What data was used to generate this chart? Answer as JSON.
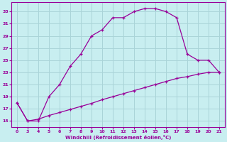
{
  "xlabel": "Windchill (Refroidissement éolien,°C)",
  "background_color": "#c8eef0",
  "grid_color": "#aad4d8",
  "line_color": "#990099",
  "ylim": [
    14.0,
    34.5
  ],
  "yticks": [
    15,
    17,
    19,
    21,
    23,
    25,
    27,
    29,
    31,
    33
  ],
  "xtick_labels": [
    "0",
    "3",
    "4",
    "5",
    "6",
    "7",
    "8",
    "9",
    "10",
    "11",
    "12",
    "13",
    "14",
    "15",
    "16",
    "17",
    "18",
    "19",
    "20",
    "21"
  ],
  "line1_pos": [
    0,
    1,
    2,
    3,
    4,
    5,
    6,
    7,
    8,
    9,
    10,
    11,
    12,
    13,
    14,
    15,
    16,
    17,
    18,
    19
  ],
  "line1_y": [
    18,
    15,
    15,
    19,
    21,
    24,
    26,
    29,
    30,
    32,
    32,
    33,
    33.5,
    33.5,
    33,
    32,
    26,
    25,
    25,
    23
  ],
  "line2_pos": [
    0,
    1,
    2,
    3,
    4,
    5,
    6,
    7,
    8,
    9,
    10,
    11,
    12,
    13,
    14,
    15,
    16,
    17,
    18,
    19
  ],
  "line2_y": [
    18,
    15,
    15.3,
    15.9,
    16.4,
    16.9,
    17.4,
    17.9,
    18.5,
    19.0,
    19.5,
    20.0,
    20.5,
    21.0,
    21.5,
    22.0,
    22.3,
    22.7,
    23.0,
    23.0
  ]
}
